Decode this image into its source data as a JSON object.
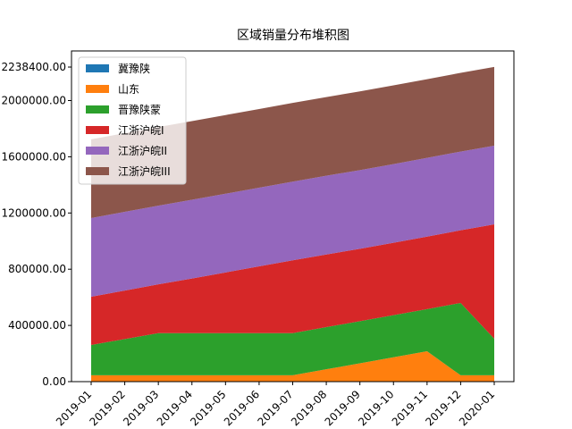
{
  "chart_data": {
    "type": "stacked_area",
    "title": "区域销量分布堆积图",
    "categories": [
      "2019-01",
      "2019-02",
      "2019-03",
      "2019-04",
      "2019-05",
      "2019-06",
      "2019-07",
      "2019-08",
      "2019-09",
      "2019-10",
      "2019-11",
      "2019-12",
      "2020-01"
    ],
    "series": [
      {
        "name": "冀豫陕",
        "color": "#1f77b4",
        "values": [
          0,
          0,
          0,
          0,
          0,
          0,
          0,
          0,
          0,
          0,
          0,
          0,
          0
        ]
      },
      {
        "name": "山东",
        "color": "#ff7f0e",
        "values": [
          45000,
          45000,
          45000,
          45000,
          45000,
          45000,
          45000,
          88000,
          130000,
          173000,
          216000,
          45000,
          45000
        ]
      },
      {
        "name": "晋豫陕蒙",
        "color": "#2ca02c",
        "values": [
          216000,
          258000,
          300000,
          300000,
          300000,
          300000,
          300000,
          300000,
          300000,
          300000,
          300000,
          515000,
          260000
        ]
      },
      {
        "name": "江浙沪皖I",
        "color": "#d62728",
        "values": [
          343000,
          345000,
          347000,
          389000,
          432000,
          475000,
          518000,
          517000,
          515000,
          515000,
          516000,
          517000,
          814000
        ]
      },
      {
        "name": "江浙沪皖II",
        "color": "#9467bd",
        "values": [
          560000,
          560000,
          560000,
          560000,
          560000,
          560000,
          560000,
          560000,
          560000,
          560000,
          560000,
          560000,
          560000
        ]
      },
      {
        "name": "江浙沪皖III",
        "color": "#8c564b",
        "values": [
          560000,
          560000,
          560000,
          560000,
          560000,
          560000,
          560000,
          560000,
          560000,
          560000,
          560000,
          560000,
          560000
        ]
      }
    ],
    "ylim": [
      0,
      2353000
    ],
    "yticks": [
      {
        "value": 0,
        "label": "0.00"
      },
      {
        "value": 400000,
        "label": "400000.00"
      },
      {
        "value": 800000,
        "label": "800000.00"
      },
      {
        "value": 1200000,
        "label": "1200000.00"
      },
      {
        "value": 1600000,
        "label": "1600000.00"
      },
      {
        "value": 2000000,
        "label": "2000000.00"
      },
      {
        "value": 2238400,
        "label": "2238400.00"
      }
    ],
    "legend": "upper left"
  }
}
